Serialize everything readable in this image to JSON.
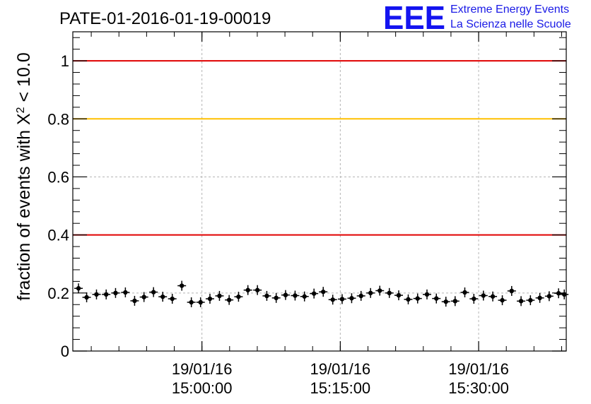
{
  "chart_data": {
    "type": "scatter",
    "title": "PATE-01-2016-01-19-00019",
    "ylabel": "fraction of events with χ² < 10.0",
    "ylabel_parts": {
      "prefix": "fraction of events with ",
      "symbol": "X",
      "sup": "2",
      "suffix": " < 10.0"
    },
    "xlabel": "",
    "ylim": [
      0,
      1.1
    ],
    "xlim": [
      "14:46:00",
      "15:39:30"
    ],
    "grid": true,
    "x_ticks": [
      {
        "x": "15:00:00",
        "date": "19/01/16",
        "time": "15:00:00"
      },
      {
        "x": "15:15:00",
        "date": "19/01/16",
        "time": "15:15:00"
      },
      {
        "x": "15:30:00",
        "date": "19/01/16",
        "time": "15:30:00"
      }
    ],
    "y_ticks": [
      {
        "value": 0,
        "label": "0"
      },
      {
        "value": 0.2,
        "label": "0.2"
      },
      {
        "value": 0.4,
        "label": "0.4"
      },
      {
        "value": 0.6,
        "label": "0.6"
      },
      {
        "value": 0.8,
        "label": "0.8"
      },
      {
        "value": 1,
        "label": "1"
      }
    ],
    "reference_lines": [
      {
        "y": 1.0,
        "color": "#e00000"
      },
      {
        "y": 0.8,
        "color": "#ffc000"
      },
      {
        "y": 0.4,
        "color": "#e00000"
      }
    ],
    "series": [
      {
        "x": [
          "14:46:37",
          "14:47:30",
          "14:48:34",
          "14:49:37",
          "14:50:38",
          "14:51:42",
          "14:52:42",
          "14:53:43",
          "14:54:45",
          "14:55:45",
          "14:56:47",
          "14:57:49",
          "14:58:51",
          "14:59:51",
          "15:00:52",
          "15:01:54",
          "15:02:57",
          "15:03:58",
          "15:04:59",
          "15:06:01",
          "15:07:02",
          "15:08:03",
          "15:09:04",
          "15:10:06",
          "15:11:07",
          "15:12:09",
          "15:13:09",
          "15:14:11",
          "15:15:12",
          "15:16:14",
          "15:17:15",
          "15:18:17",
          "15:19:17",
          "15:20:19",
          "15:21:20",
          "15:22:22",
          "15:23:23",
          "15:24:24",
          "15:25:25",
          "15:26:27",
          "15:27:27",
          "15:28:30",
          "15:29:29",
          "15:30:31",
          "15:31:32",
          "15:32:34",
          "15:33:35",
          "15:34:36",
          "15:35:37",
          "15:36:38",
          "15:37:39",
          "15:38:40",
          "15:39:17"
        ],
        "values": [
          0.216,
          0.185,
          0.195,
          0.195,
          0.2,
          0.202,
          0.173,
          0.186,
          0.203,
          0.187,
          0.18,
          0.225,
          0.168,
          0.168,
          0.18,
          0.19,
          0.176,
          0.187,
          0.21,
          0.21,
          0.19,
          0.183,
          0.193,
          0.191,
          0.188,
          0.198,
          0.204,
          0.177,
          0.179,
          0.182,
          0.19,
          0.2,
          0.208,
          0.2,
          0.192,
          0.178,
          0.181,
          0.195,
          0.181,
          0.17,
          0.172,
          0.202,
          0.18,
          0.191,
          0.188,
          0.175,
          0.207,
          0.172,
          0.175,
          0.183,
          0.189,
          0.199,
          0.195
        ],
        "color": "#000000"
      }
    ]
  },
  "logo": {
    "mark": "EEE",
    "line1": "Extreme Energy Events",
    "line2": "La Scienza nelle Scuole",
    "color": "#1414f0"
  }
}
